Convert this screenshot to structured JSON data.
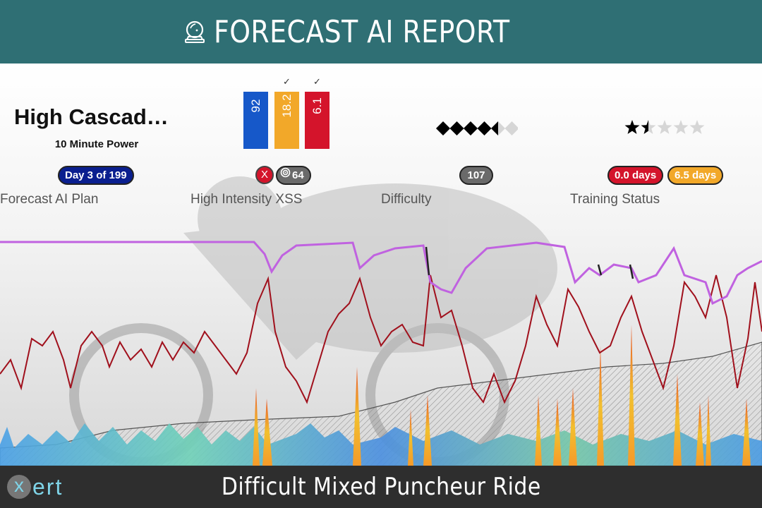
{
  "header": {
    "title": "FORECAST AI REPORT",
    "icon": "crystal-ball-icon"
  },
  "plan": {
    "name": "High Cascad…",
    "subtitle": "10 Minute Power",
    "day_badge": "Day 3 of 199",
    "label": "Forecast AI Plan"
  },
  "xss": {
    "bars": [
      {
        "value": "92",
        "color": "#1658c9",
        "check": ""
      },
      {
        "value": "18.2",
        "color": "#f2a829",
        "check": "✓"
      },
      {
        "value": "6.1",
        "color": "#d4142b",
        "check": "✓"
      }
    ],
    "x_badge": "X",
    "target_badge": "64",
    "label": "High Intensity XSS"
  },
  "difficulty": {
    "rating": 4.5,
    "max": 6,
    "badge": "107",
    "label": "Difficulty"
  },
  "training_status": {
    "stars": 1.5,
    "max": 5,
    "badge_red": "0.0 days",
    "badge_orange": "6.5 days",
    "label": "Training Status"
  },
  "footer": {
    "caption": "Difficult Mixed Puncheur Ride",
    "logo": "xert"
  }
}
